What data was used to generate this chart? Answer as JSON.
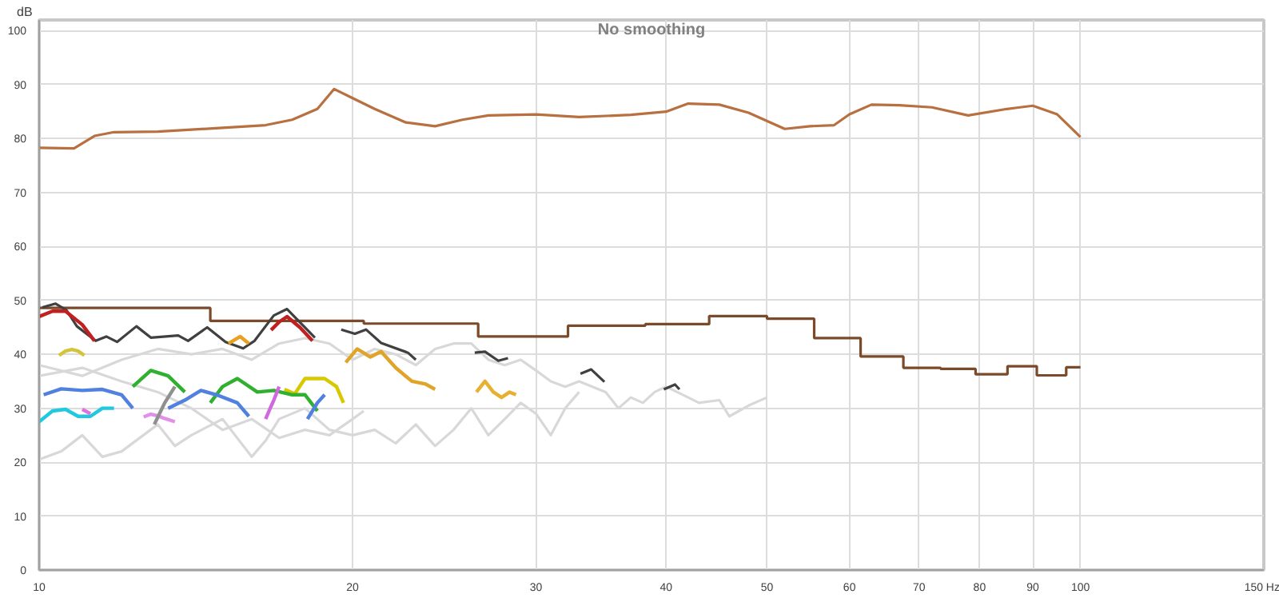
{
  "chart_data": {
    "type": "line",
    "title": "No smoothing",
    "ylabel": "dB",
    "log": "x",
    "grid": true,
    "xlim": [
      10,
      150
    ],
    "ylim": [
      0,
      102
    ],
    "xticks": [
      10,
      20,
      30,
      40,
      50,
      60,
      70,
      80,
      90,
      100,
      {
        "value": 150,
        "label": "150 Hz"
      }
    ],
    "yticks": [
      0,
      10,
      20,
      30,
      40,
      50,
      60,
      70,
      80,
      90,
      100
    ],
    "series": [
      {
        "color": "#d8d8d8",
        "x": [
          10,
          11,
          12,
          13,
          14,
          15,
          16,
          17,
          18,
          19,
          20,
          21,
          22,
          23,
          24,
          25,
          26,
          27,
          28,
          29,
          30,
          31,
          32,
          33,
          35,
          36,
          37,
          38,
          39,
          40,
          42,
          43,
          45,
          46,
          47,
          48,
          50
        ],
        "values": [
          38,
          36,
          39,
          41,
          40,
          41,
          39,
          42,
          43,
          42,
          39,
          41,
          40,
          38,
          41,
          42,
          42,
          39,
          38,
          39,
          37,
          35,
          34,
          35,
          33,
          30,
          32,
          31,
          33,
          34,
          32,
          31,
          31.5,
          28.5,
          29.5,
          30.5,
          32
        ]
      },
      {
        "color": "#d8d8d8",
        "x": [
          10,
          10.5,
          11,
          11.5,
          12,
          13,
          13.5,
          14,
          15,
          16,
          16.5,
          17,
          18,
          19,
          20,
          21,
          22,
          23,
          24,
          25,
          26,
          27,
          28,
          29,
          30,
          31,
          32,
          33
        ],
        "values": [
          20.5,
          22,
          25,
          21,
          22,
          27,
          23,
          25,
          28,
          21,
          24,
          28,
          30,
          26,
          25,
          26,
          23.5,
          27,
          23,
          26,
          30,
          25,
          28,
          31,
          29,
          25,
          30,
          33
        ]
      },
      {
        "color": "#d8d8d8",
        "x": [
          10,
          11,
          12,
          13,
          14,
          15,
          16,
          17,
          18,
          19,
          20,
          20.5
        ],
        "values": [
          36,
          37.5,
          35,
          33,
          30,
          26,
          28,
          24.5,
          26,
          25,
          28,
          29.5
        ]
      },
      {
        "type": "step",
        "color": "#7a4a2a",
        "x": [
          10,
          14.6,
          20.5,
          26.4,
          32.2,
          38.2,
          44,
          50,
          55.5,
          61.5,
          67.6,
          73.4,
          79.3,
          85.1,
          90.8,
          96.9,
          100
        ],
        "values": [
          48.6,
          46.2,
          45.7,
          43.3,
          45.3,
          45.6,
          47.1,
          46.6,
          43.0,
          39.6,
          37.5,
          37.3,
          36.3,
          37.8,
          36.1,
          37.6,
          37.6
        ]
      },
      {
        "color": "#404040",
        "x": [
          10.07,
          10.37,
          10.62,
          10.87,
          11.33,
          11.6,
          11.88,
          12.4,
          12.8,
          13.6,
          13.9,
          14.5,
          15.1,
          15.7,
          16.1,
          16.8,
          17.3,
          18.4,
          19.0,
          19.5,
          20.1,
          20.6,
          21.3,
          22.6,
          23.0,
          24.5,
          26.2,
          26.8,
          27.6,
          28.2,
          30.5,
          33.1,
          33.9,
          34.9,
          37.5,
          39.8,
          40.8,
          41.2
        ],
        "values": [
          48.7,
          49.4,
          48.2,
          45.2,
          42.5,
          43.3,
          42.3,
          45.2,
          43.1,
          43.5,
          42.5,
          45.0,
          42.3,
          41.1,
          42.5,
          47.2,
          48.4,
          43.1,
          null,
          44.6,
          43.8,
          44.6,
          42.1,
          40.3,
          39.0,
          null,
          40.3,
          40.5,
          38.8,
          39.3,
          null,
          36.4,
          37.2,
          34.9,
          null,
          33.5,
          34.4,
          33.5
        ]
      },
      {
        "color": "#c02020",
        "x": [
          10,
          10.3,
          10.6,
          11,
          11.3
        ],
        "values": [
          47,
          48,
          48,
          45.5,
          42.5
        ]
      },
      {
        "color": "#c02020",
        "x": [
          16.7,
          17,
          17.3,
          17.8,
          18.3
        ],
        "values": [
          44.5,
          46,
          47,
          45,
          42.5
        ]
      },
      {
        "color": "#d4c43c",
        "x": [
          10.45,
          10.6,
          10.75,
          10.9,
          11.05
        ],
        "values": [
          39.8,
          40.6,
          40.9,
          40.6,
          39.8
        ]
      },
      {
        "color": "#e8a020",
        "x": [
          15.2,
          15.6,
          15.9
        ],
        "values": [
          42,
          43.3,
          42
        ]
      },
      {
        "color": "#e0a428",
        "x": [
          19.7,
          20.2,
          20.8,
          21.3,
          22,
          22.8,
          23.5,
          24
        ],
        "values": [
          38.5,
          41,
          39.5,
          40.5,
          37.5,
          35,
          34.5,
          33.5
        ]
      },
      {
        "color": "#e8b030",
        "x": [
          26.3,
          26.8,
          27.3,
          27.8,
          28.3,
          28.7
        ],
        "values": [
          33,
          35,
          33,
          32,
          33,
          32.5
        ]
      },
      {
        "color": "#d8c800",
        "x": [
          17.2,
          17.6,
          18,
          18.8,
          19.3,
          19.6
        ],
        "values": [
          33.5,
          32.7,
          35.5,
          35.5,
          34,
          31
        ]
      },
      {
        "color": "#30b030",
        "x": [
          12.3,
          12.8,
          13.3,
          13.8
        ],
        "values": [
          34,
          37,
          36,
          33
        ]
      },
      {
        "color": "#30b030",
        "x": [
          14.6,
          15,
          15.5,
          16.2,
          16.8,
          17.5,
          18,
          18.5
        ],
        "values": [
          31,
          34,
          35.5,
          33,
          33.3,
          32.5,
          32.5,
          29.5
        ]
      },
      {
        "color": "#5080e0",
        "x": [
          10.1,
          10.5,
          11,
          11.5,
          12,
          12.3
        ],
        "values": [
          32.5,
          33.6,
          33.3,
          33.5,
          32.5,
          30
        ]
      },
      {
        "color": "#5080e0",
        "x": [
          13.3,
          13.8,
          14.3,
          14.8,
          15.5,
          15.9
        ],
        "values": [
          30,
          31.5,
          33.3,
          32.5,
          31,
          28.5
        ]
      },
      {
        "color": "#5080e0",
        "x": [
          18.1,
          18.5,
          18.8
        ],
        "values": [
          28,
          31,
          32.5
        ]
      },
      {
        "color": "#20c8e0",
        "x": [
          10,
          10.3,
          10.6,
          10.9,
          11.2,
          11.5,
          11.8
        ],
        "values": [
          27.5,
          29.5,
          29.8,
          28.5,
          28.5,
          30,
          30
        ]
      },
      {
        "color": "#e070e0",
        "x": [
          11.0,
          11.2
        ],
        "values": [
          29.8,
          29
        ]
      },
      {
        "color": "#e090e8",
        "x": [
          12.6,
          12.8,
          13.0,
          13.2,
          13.5
        ],
        "values": [
          28.4,
          28.9,
          28.6,
          28.1,
          27.5
        ]
      },
      {
        "color": "#d068e0",
        "x": [
          16.5,
          16.65,
          16.8,
          17
        ],
        "values": [
          28,
          29.8,
          31.5,
          34
        ]
      },
      {
        "color": "#909090",
        "x": [
          12.9,
          13.2,
          13.5
        ],
        "values": [
          27,
          31,
          34
        ]
      },
      {
        "color": "#b87040",
        "x": [
          10,
          10.8,
          11.3,
          11.8,
          13,
          15,
          16.5,
          17.5,
          18.5,
          19.2,
          20,
          21,
          22.5,
          24,
          25.5,
          27,
          30,
          33,
          37,
          40,
          42,
          45,
          48,
          52,
          55,
          58,
          60,
          63,
          67,
          72,
          78,
          85,
          90,
          95,
          100
        ],
        "values": [
          78.3,
          78.2,
          80.5,
          81.2,
          81.3,
          82,
          82.5,
          83.5,
          85.5,
          89.2,
          87.5,
          85.5,
          83,
          82.3,
          83.5,
          84.3,
          84.5,
          84,
          84.4,
          85,
          86.5,
          86.3,
          84.8,
          81.8,
          82.3,
          82.5,
          84.5,
          86.3,
          86.2,
          85.8,
          84.3,
          85.5,
          86.1,
          84.5,
          80.3
        ]
      }
    ]
  }
}
